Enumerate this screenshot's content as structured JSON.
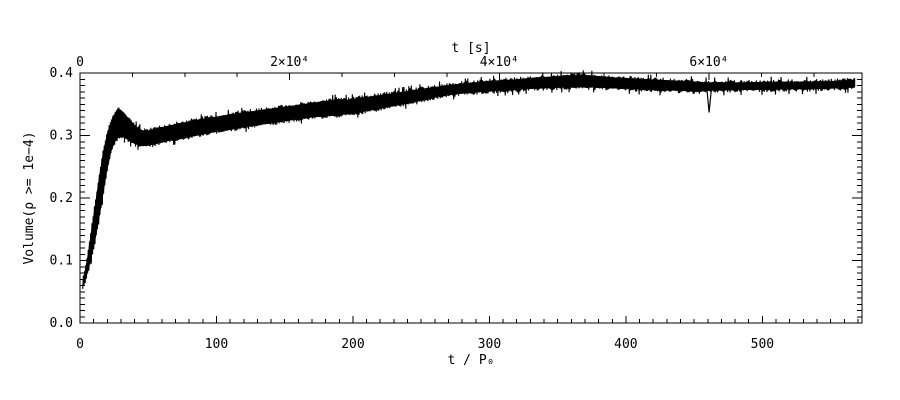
{
  "colors": {
    "background": "#ffffff",
    "axis": "#000000",
    "curve": "#000000"
  },
  "chart_data": {
    "type": "area",
    "subtype": "high-frequency-oscillating-band",
    "title": "",
    "x_axis_bottom": {
      "label": "t / P₀",
      "range": [
        0,
        573
      ],
      "major_ticks": [
        0,
        100,
        200,
        300,
        400,
        500
      ],
      "major_tick_labels": [
        "0",
        "100",
        "200",
        "300",
        "400",
        "500"
      ],
      "minor_tick_step": 10,
      "grid": false
    },
    "x_axis_top": {
      "label": "t [s]",
      "range": [
        0,
        74600
      ],
      "major_ticks": [
        0,
        20000,
        40000,
        60000
      ],
      "major_tick_labels": [
        "0",
        "2×10⁴",
        "4×10⁴",
        "6×10⁴"
      ],
      "minor_tick_step": 5000,
      "grid": false
    },
    "y_axis": {
      "label": "Volume(ρ >= 1e−4)",
      "range": [
        0,
        0.4
      ],
      "major_ticks": [
        0.0,
        0.1,
        0.2,
        0.3,
        0.4
      ],
      "major_tick_labels": [
        "0.0",
        "0.1",
        "0.2",
        "0.3",
        "0.4"
      ],
      "minor_tick_step": 0.01,
      "grid": false
    },
    "series": [
      {
        "name": "volume-band",
        "style": "filled oscillation envelope, black",
        "t_start": 2,
        "t_end": 568,
        "envelope_points_t_low_high": [
          [
            2,
            0.057,
            0.068
          ],
          [
            5,
            0.075,
            0.1
          ],
          [
            8,
            0.1,
            0.145
          ],
          [
            11,
            0.13,
            0.19
          ],
          [
            14,
            0.165,
            0.235
          ],
          [
            17,
            0.205,
            0.275
          ],
          [
            20,
            0.245,
            0.305
          ],
          [
            23,
            0.275,
            0.325
          ],
          [
            26,
            0.292,
            0.337
          ],
          [
            29,
            0.298,
            0.342
          ],
          [
            32,
            0.297,
            0.337
          ],
          [
            35,
            0.293,
            0.329
          ],
          [
            38,
            0.289,
            0.321
          ],
          [
            42,
            0.285,
            0.313
          ],
          [
            46,
            0.283,
            0.308
          ],
          [
            50,
            0.284,
            0.308
          ],
          [
            55,
            0.286,
            0.31
          ],
          [
            60,
            0.289,
            0.313
          ],
          [
            66,
            0.292,
            0.316
          ],
          [
            72,
            0.294,
            0.319
          ],
          [
            79,
            0.297,
            0.322
          ],
          [
            86,
            0.3,
            0.325
          ],
          [
            93,
            0.303,
            0.328
          ],
          [
            100,
            0.306,
            0.33
          ],
          [
            110,
            0.309,
            0.334
          ],
          [
            120,
            0.313,
            0.337
          ],
          [
            130,
            0.316,
            0.34
          ],
          [
            140,
            0.32,
            0.343
          ],
          [
            150,
            0.323,
            0.346
          ],
          [
            160,
            0.326,
            0.349
          ],
          [
            170,
            0.329,
            0.352
          ],
          [
            180,
            0.331,
            0.355
          ],
          [
            188,
            0.332,
            0.358
          ],
          [
            196,
            0.334,
            0.357
          ],
          [
            205,
            0.337,
            0.36
          ],
          [
            215,
            0.341,
            0.363
          ],
          [
            225,
            0.345,
            0.366
          ],
          [
            235,
            0.349,
            0.369
          ],
          [
            245,
            0.353,
            0.373
          ],
          [
            255,
            0.358,
            0.376
          ],
          [
            265,
            0.363,
            0.379
          ],
          [
            275,
            0.366,
            0.382
          ],
          [
            285,
            0.368,
            0.384
          ],
          [
            295,
            0.37,
            0.386
          ],
          [
            305,
            0.371,
            0.388
          ],
          [
            315,
            0.372,
            0.389
          ],
          [
            325,
            0.374,
            0.391
          ],
          [
            335,
            0.375,
            0.393
          ],
          [
            345,
            0.376,
            0.394
          ],
          [
            355,
            0.377,
            0.396
          ],
          [
            365,
            0.377,
            0.397
          ],
          [
            375,
            0.377,
            0.396
          ],
          [
            385,
            0.376,
            0.394
          ],
          [
            395,
            0.375,
            0.392
          ],
          [
            405,
            0.374,
            0.391
          ],
          [
            415,
            0.373,
            0.39
          ],
          [
            425,
            0.372,
            0.389
          ],
          [
            435,
            0.372,
            0.388
          ],
          [
            445,
            0.371,
            0.387
          ],
          [
            452,
            0.37,
            0.386
          ],
          [
            458,
            0.371,
            0.385
          ],
          [
            465,
            0.372,
            0.385
          ],
          [
            475,
            0.372,
            0.385
          ],
          [
            490,
            0.373,
            0.385
          ],
          [
            505,
            0.373,
            0.386
          ],
          [
            520,
            0.374,
            0.386
          ],
          [
            535,
            0.374,
            0.386
          ],
          [
            550,
            0.375,
            0.387
          ],
          [
            560,
            0.376,
            0.388
          ],
          [
            568,
            0.377,
            0.389
          ]
        ],
        "downward_spike": {
          "t": 461,
          "v_min": 0.337
        }
      }
    ]
  }
}
